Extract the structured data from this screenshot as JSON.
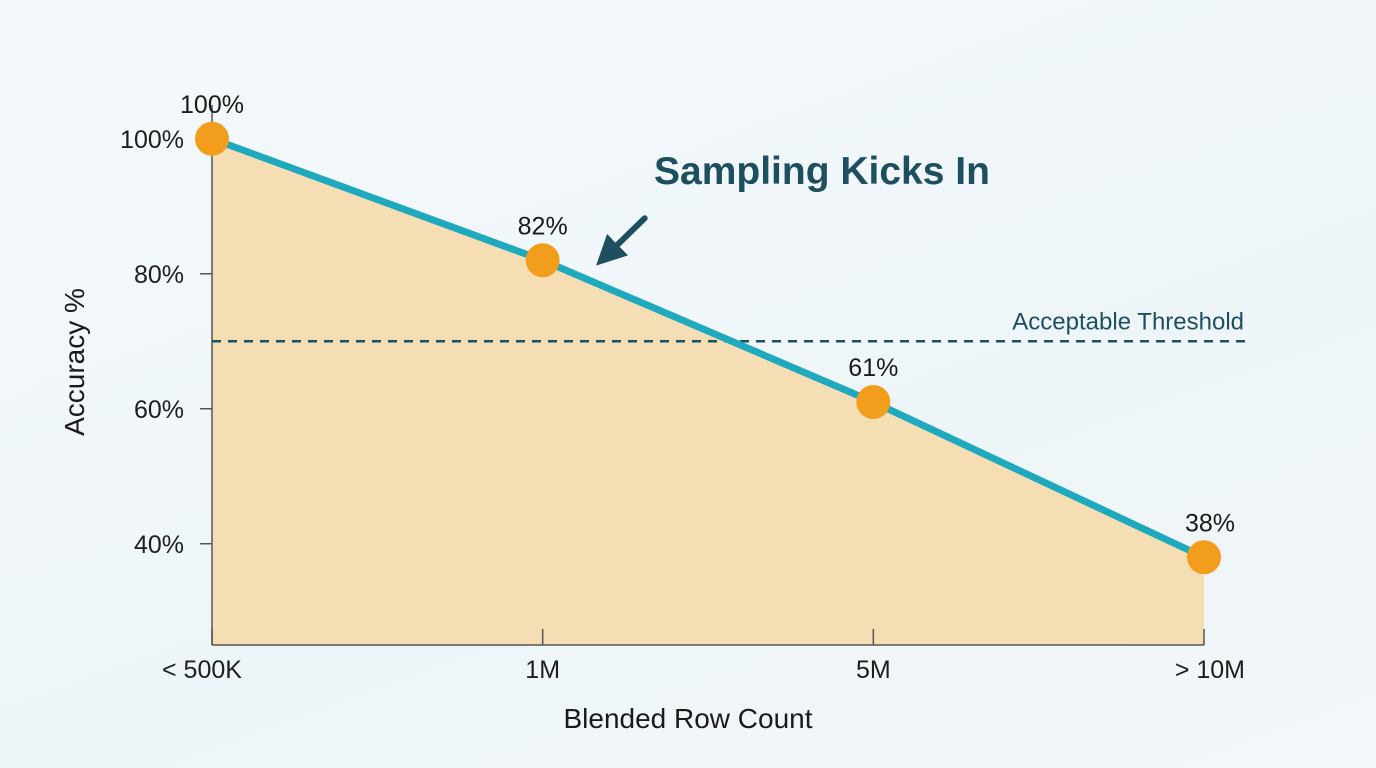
{
  "chart_data": {
    "type": "area",
    "categories": [
      "< 500K",
      "1M",
      "5M",
      "> 10M"
    ],
    "values": [
      100,
      82,
      61,
      38
    ],
    "data_labels": [
      "100%",
      "82%",
      "61%",
      "38%"
    ],
    "xlabel": "Blended Row Count",
    "ylabel": "Accuracy %",
    "ylim": [
      25,
      105
    ],
    "yticks": [
      40,
      60,
      80,
      100
    ],
    "ytick_labels": [
      "40%",
      "60%",
      "80%",
      "100%"
    ],
    "threshold": {
      "value": 70,
      "label": "Acceptable Threshold",
      "color": "#1d4f5e"
    },
    "annotation": {
      "text": "Sampling Kicks In",
      "target_index": 1,
      "color": "#1d4f5e"
    },
    "colors": {
      "line": "#1fa9bf",
      "fill": "#f6dcb0",
      "point": "#f29d1c",
      "axis": "#555555"
    },
    "grid": false
  }
}
